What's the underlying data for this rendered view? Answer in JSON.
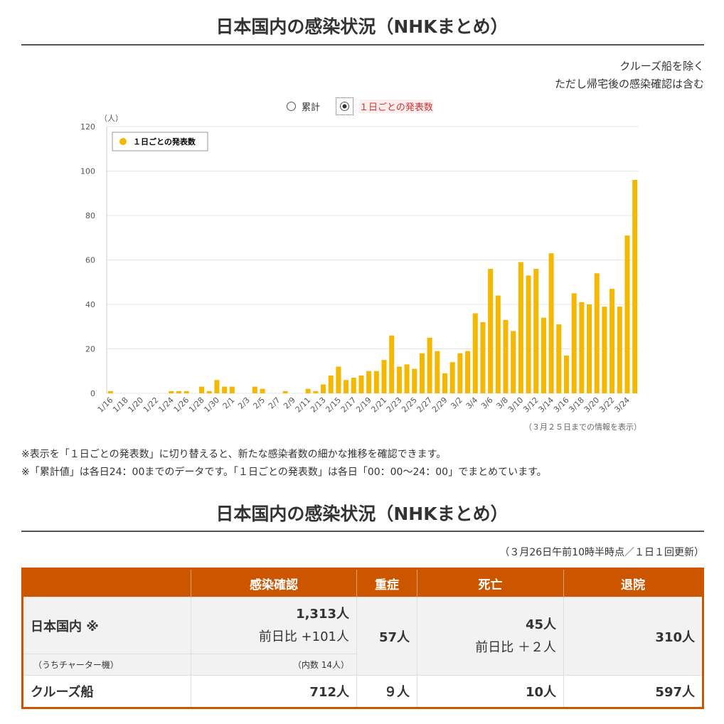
{
  "header": {
    "title": "日本国内の感染状況（NHKまとめ）",
    "note_lines": [
      "クルーズ船を除く",
      "ただし帰宅後の感染確認は含む"
    ]
  },
  "toggle": {
    "options": [
      "累計",
      "１日ごとの発表数"
    ]
  },
  "chart_data": {
    "type": "bar",
    "y_unit": "（人）",
    "legend": "１日ごとの発表数",
    "color": "#f5b800",
    "grid": true,
    "categories": [
      "1/16",
      null,
      "1/18",
      null,
      "1/20",
      null,
      "1/22",
      null,
      "1/24",
      null,
      "1/26",
      null,
      "1/28",
      null,
      "1/30",
      null,
      "2/1",
      null,
      "2/3",
      null,
      "2/5",
      null,
      "2/7",
      null,
      "2/9",
      null,
      "2/11",
      null,
      "2/13",
      null,
      "2/15",
      null,
      "2/17",
      null,
      "2/19",
      null,
      "2/21",
      null,
      "2/23",
      null,
      "2/25",
      null,
      "2/27",
      null,
      "2/29",
      null,
      "3/2",
      null,
      "3/4",
      null,
      "3/6",
      null,
      "3/8",
      null,
      "3/10",
      null,
      "3/12",
      null,
      "3/14",
      null,
      "3/16",
      null,
      "3/18",
      null,
      "3/20",
      null,
      "3/22",
      null,
      "3/24",
      null
    ],
    "values": [
      1,
      0,
      0,
      0,
      0,
      0,
      0,
      0,
      1,
      1,
      1,
      0,
      3,
      1,
      6,
      3,
      3,
      0,
      0,
      3,
      2,
      0,
      0,
      1,
      0,
      0,
      2,
      1,
      4,
      8,
      12,
      6,
      7,
      8,
      10,
      10,
      15,
      26,
      12,
      13,
      11,
      18,
      25,
      19,
      9,
      14,
      18,
      19,
      36,
      32,
      56,
      44,
      33,
      28,
      59,
      53,
      56,
      34,
      63,
      31,
      17,
      45,
      41,
      40,
      54,
      39,
      47,
      39,
      71,
      96
    ],
    "ylim": [
      0,
      120
    ],
    "yticks": [
      0,
      20,
      40,
      60,
      80,
      100,
      120
    ],
    "note": "（３月２５日までの情報を表示）"
  },
  "notes": [
    "※表示を「１日ごとの発表数」に切り替えると、新たな感染者数の細かな推移を確認できます。",
    "※「累計値」は各日24：00までのデータです。「１日ごとの発表数」は各日「00：00～24：00」でまとめています。"
  ],
  "section2": {
    "title": "日本国内の感染状況（NHKまとめ）",
    "update": "（３月26日午前10時半時点／１日１回更新）"
  },
  "table": {
    "headers": [
      "感染確認",
      "重症",
      "死亡",
      "退院"
    ],
    "domestic": {
      "name": "日本国内 ※",
      "sub": "（うちチャーター機）",
      "confirmed": "1,313人",
      "confirmed_diff": "前日比 +101人",
      "confirmed_sub": "（内数 14人）",
      "severe": "57人",
      "deaths": "45人",
      "deaths_diff": "前日比 ＋２人",
      "discharged": "310人"
    },
    "cruise": {
      "name": "クルーズ船",
      "confirmed": "712人",
      "severe": "９人",
      "deaths": "10人",
      "discharged": "597人"
    }
  }
}
